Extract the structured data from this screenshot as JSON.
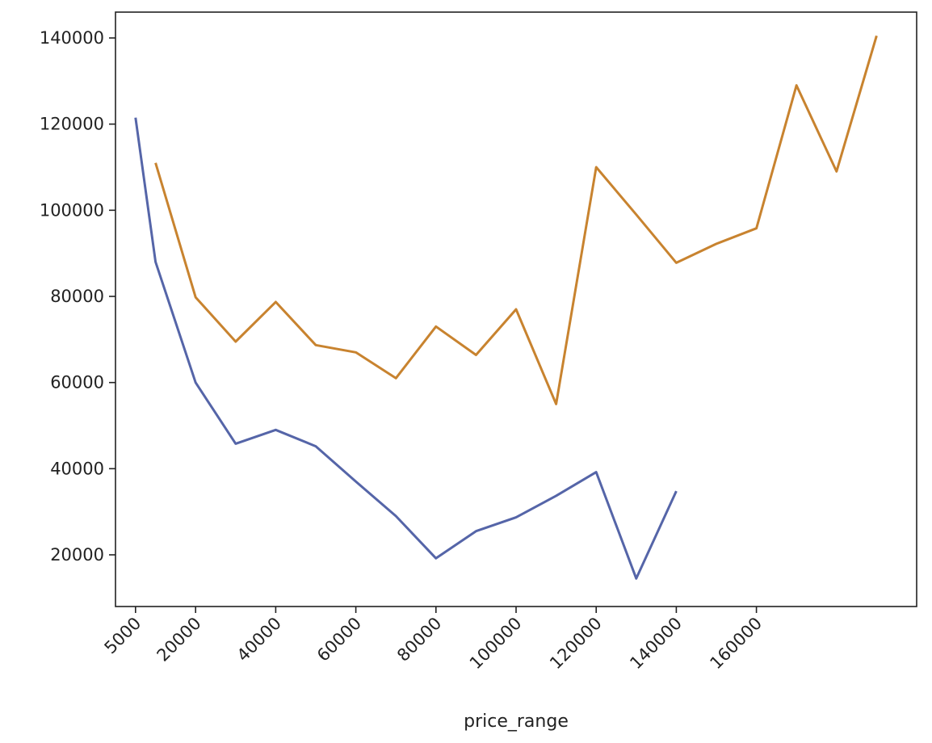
{
  "chart_data": {
    "type": "line",
    "title": "",
    "xlabel": "price_range",
    "ylabel": "",
    "xlim": [
      0,
      200000
    ],
    "ylim": [
      8000,
      146000
    ],
    "x_ticks": [
      5000,
      20000,
      40000,
      60000,
      80000,
      100000,
      120000,
      140000,
      160000
    ],
    "x_tick_labels": [
      "5000",
      "20000",
      "40000",
      "60000",
      "80000",
      "100000",
      "120000",
      "140000",
      "160000"
    ],
    "y_ticks": [
      20000,
      40000,
      60000,
      80000,
      100000,
      120000,
      140000
    ],
    "y_tick_labels": [
      "20000",
      "40000",
      "60000",
      "80000",
      "100000",
      "120000",
      "140000"
    ],
    "grid": false,
    "legend": "none",
    "series": [
      {
        "color": "#5565a8",
        "x": [
          5000,
          10000,
          20000,
          30000,
          40000,
          50000,
          60000,
          70000,
          80000,
          90000,
          100000,
          110000,
          120000,
          130000,
          140000
        ],
        "y": [
          121500,
          88000,
          60000,
          45800,
          49000,
          45200,
          37000,
          29000,
          19200,
          25500,
          28700,
          33700,
          39200,
          14500,
          34800
        ]
      },
      {
        "color": "#c8832f",
        "x": [
          10000,
          20000,
          30000,
          40000,
          50000,
          60000,
          70000,
          80000,
          90000,
          100000,
          110000,
          120000,
          130000,
          140000,
          150000,
          160000,
          170000,
          180000,
          190000
        ],
        "y": [
          111000,
          79800,
          69500,
          78700,
          68700,
          67000,
          61000,
          73000,
          66400,
          77000,
          55000,
          110000,
          99000,
          87800,
          92200,
          95800,
          129000,
          109000,
          140500
        ]
      }
    ]
  }
}
